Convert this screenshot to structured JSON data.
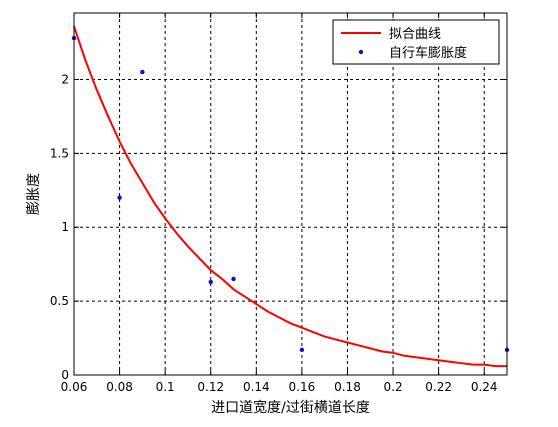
{
  "chart_data": {
    "type": "scatter",
    "title": "",
    "xlabel": "进口道宽度/过街横道长度",
    "ylabel": "膨胀度",
    "xlim": [
      0.06,
      0.25
    ],
    "ylim": [
      0,
      2.45
    ],
    "xticks": [
      0.06,
      0.08,
      0.1,
      0.12,
      0.14,
      0.16,
      0.18,
      0.2,
      0.22,
      0.24
    ],
    "xtick_labels": [
      "0.06",
      "0.08",
      "0.1",
      "0.12",
      "0.14",
      "0.16",
      "0.18",
      "0.2",
      "0.22",
      "0.24"
    ],
    "yticks": [
      0,
      0.5,
      1,
      1.5,
      2
    ],
    "ytick_labels": [
      "0",
      "0.5",
      "1",
      "1.5",
      "2"
    ],
    "grid": true,
    "legend_position": "top-right",
    "series": [
      {
        "name": "拟合曲线",
        "kind": "line",
        "color": "#ff0000",
        "x": [
          0.06,
          0.065,
          0.07,
          0.075,
          0.08,
          0.085,
          0.09,
          0.095,
          0.1,
          0.105,
          0.11,
          0.115,
          0.12,
          0.125,
          0.13,
          0.135,
          0.14,
          0.145,
          0.15,
          0.155,
          0.16,
          0.165,
          0.17,
          0.175,
          0.18,
          0.185,
          0.19,
          0.195,
          0.2,
          0.205,
          0.21,
          0.215,
          0.22,
          0.225,
          0.23,
          0.235,
          0.24,
          0.245,
          0.25
        ],
        "y": [
          2.36,
          2.13,
          1.93,
          1.75,
          1.58,
          1.43,
          1.3,
          1.17,
          1.06,
          0.96,
          0.87,
          0.79,
          0.71,
          0.65,
          0.58,
          0.53,
          0.48,
          0.43,
          0.39,
          0.35,
          0.32,
          0.29,
          0.26,
          0.24,
          0.22,
          0.2,
          0.18,
          0.16,
          0.15,
          0.13,
          0.12,
          0.11,
          0.1,
          0.09,
          0.08,
          0.07,
          0.07,
          0.06,
          0.06
        ]
      },
      {
        "name": "自行车膨胀度",
        "kind": "scatter",
        "color": "#2a00d0",
        "x": [
          0.06,
          0.08,
          0.09,
          0.12,
          0.13,
          0.16,
          0.25
        ],
        "y": [
          2.28,
          1.2,
          2.05,
          0.63,
          0.65,
          0.17,
          0.17
        ]
      }
    ]
  }
}
